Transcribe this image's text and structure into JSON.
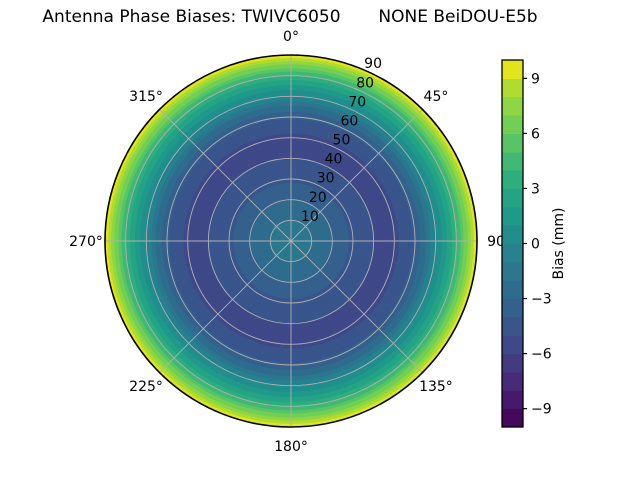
{
  "figure": {
    "title": "Antenna Phase Biases: TWIVC6050       NONE BeiDOU-E5b"
  },
  "chart_data": {
    "type": "heatmap",
    "projection": "polar-skyplot",
    "title": "Antenna Phase Biases: TWIVC6050       NONE BeiDOU-E5b",
    "angular_ticks": [
      {
        "angle_deg": 0,
        "label": "0°"
      },
      {
        "angle_deg": 45,
        "label": "45°"
      },
      {
        "angle_deg": 90,
        "label": "90"
      },
      {
        "angle_deg": 135,
        "label": "135°"
      },
      {
        "angle_deg": 180,
        "label": "180°"
      },
      {
        "angle_deg": 225,
        "label": "225°"
      },
      {
        "angle_deg": 270,
        "label": "270°"
      },
      {
        "angle_deg": 315,
        "label": "315°"
      }
    ],
    "radial_axis": {
      "min": 0,
      "max": 90,
      "grid_step_deg": 10,
      "tick_label_angle_deg": 22.5
    },
    "radial_ticks": [
      {
        "value": 10,
        "label": "10"
      },
      {
        "value": 20,
        "label": "20"
      },
      {
        "value": 30,
        "label": "30"
      },
      {
        "value": 40,
        "label": "40"
      },
      {
        "value": 50,
        "label": "50"
      },
      {
        "value": 60,
        "label": "60"
      },
      {
        "value": 70,
        "label": "70"
      },
      {
        "value": 80,
        "label": "80"
      },
      {
        "value": 90,
        "label": "90"
      }
    ],
    "angular_grid_step_deg": 45,
    "grid_color": "#b0b0b0",
    "outline_color": "#000000",
    "bias_profile": {
      "comment_units": "zenith angle in degrees from plot center outward; bias in mm",
      "zenith_deg": [
        0,
        5,
        10.6,
        19.4,
        28,
        40,
        46,
        52,
        59,
        62.4,
        65.3,
        67.7,
        70.2,
        73.1,
        75.5,
        77.9,
        79.8,
        81.8,
        83.7,
        85.6,
        87.1,
        88.5,
        90
      ],
      "bias_mm": [
        -1.2,
        -1.6,
        -2,
        -3,
        -4,
        -5,
        -5.3,
        -5,
        -4,
        -3,
        -2,
        -1,
        0,
        1,
        2,
        3,
        4,
        5,
        6,
        7,
        8,
        9,
        10
      ]
    },
    "colorbar": {
      "label": "Bias (mm)",
      "colormap": "viridis",
      "vmin": -10,
      "vmax": 10,
      "n_levels": 20,
      "tick_values": [
        9,
        6,
        3,
        0,
        -3,
        -6,
        -9
      ],
      "tick_labels": [
        "9",
        "6",
        "3",
        "0",
        "−3",
        "−6",
        "−9"
      ],
      "level_colors": [
        "#45095c",
        "#47196c",
        "#472a79",
        "#443983",
        "#3f4889",
        "#39558c",
        "#34608d",
        "#2e6c8e",
        "#2a778e",
        "#25828e",
        "#218e8d",
        "#1f998a",
        "#23a485",
        "#2eae7e",
        "#41b873",
        "#57c566",
        "#71cf55",
        "#8fd644",
        "#afdc2f",
        "#e2e41c"
      ]
    }
  }
}
